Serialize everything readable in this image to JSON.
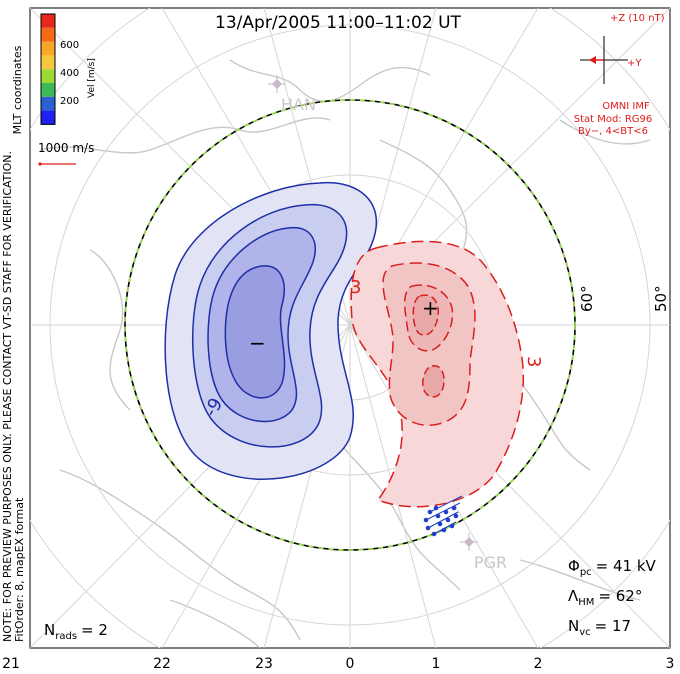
{
  "title": "13/Apr/2005 11:00–11:02 UT",
  "side_note_line1": "NOTE: FOR PREVIEW PURPOSES ONLY. PLEASE CONTACT VT-SD STAFF FOR VERIFICATION.",
  "side_note_line2": "FitOrder: 8, mapEX format",
  "coords_label": "MLT coordinates",
  "colorbar": {
    "label": "Vel [m/s]",
    "ticks": [
      "600",
      "400",
      "200"
    ],
    "colors": [
      "#e8281e",
      "#f46a18",
      "#f7a62a",
      "#9ed838",
      "#3fb957",
      "#2f8f8a",
      "#2c5fd0",
      "#1e22f0"
    ]
  },
  "velocity_scale_label": "1000 m/s",
  "imf": {
    "z_label": "+Z (10 nT)",
    "y_label": "+Y",
    "source": "OMNI IMF",
    "model_line1": "Stat Mod: RG96",
    "model_line2": "By−, 4<BT<6",
    "color": "#e11b1b"
  },
  "stations": [
    {
      "code": "HAN"
    },
    {
      "code": "PGR"
    }
  ],
  "lat_labels": [
    "60°",
    "50°"
  ],
  "mlt_labels": [
    "21",
    "22",
    "23",
    "0",
    "1",
    "2",
    "3"
  ],
  "contour_labels": {
    "negative": "-9",
    "pos_top": "3",
    "pos_right": "3"
  },
  "markers": {
    "min": "−",
    "max": "+"
  },
  "stats": {
    "phi_pc_label": "Φ",
    "phi_pc_sub": "pc",
    "phi_pc_value": "= 41 kV",
    "lambda_hm_label": "Λ",
    "lambda_hm_sub": "HM",
    "lambda_hm_value": "= 62°",
    "nvc_label": "N",
    "nvc_sub": "vc",
    "nvc_value": "= 17",
    "nrads_label": "N",
    "nrads_sub": "rads",
    "nrads_value": "= 2"
  },
  "chart_data": {
    "type": "polar-convection-map",
    "title": "13/Apr/2005 11:00–11:02 UT",
    "coordinate_system": "MLT coordinates",
    "velocity_colorbar": {
      "label": "Vel [m/s]",
      "ticks": [
        200,
        400,
        600
      ]
    },
    "mlt_ticks": [
      21,
      22,
      23,
      0,
      1,
      2,
      3
    ],
    "latitude_circles_deg": [
      60,
      50
    ],
    "cross_polar_cap_potential_kV": 41,
    "heppner_maynard_boundary_deg": 62,
    "n_vectors": 17,
    "n_radars": 2,
    "contours": [
      {
        "cell": "negative",
        "label": "-9",
        "color": "#1f2fa8"
      },
      {
        "cell": "positive",
        "label": "3",
        "color": "#d92020"
      }
    ],
    "imf_model": "RG96",
    "imf_condition": "By−, 4<BT<6"
  }
}
